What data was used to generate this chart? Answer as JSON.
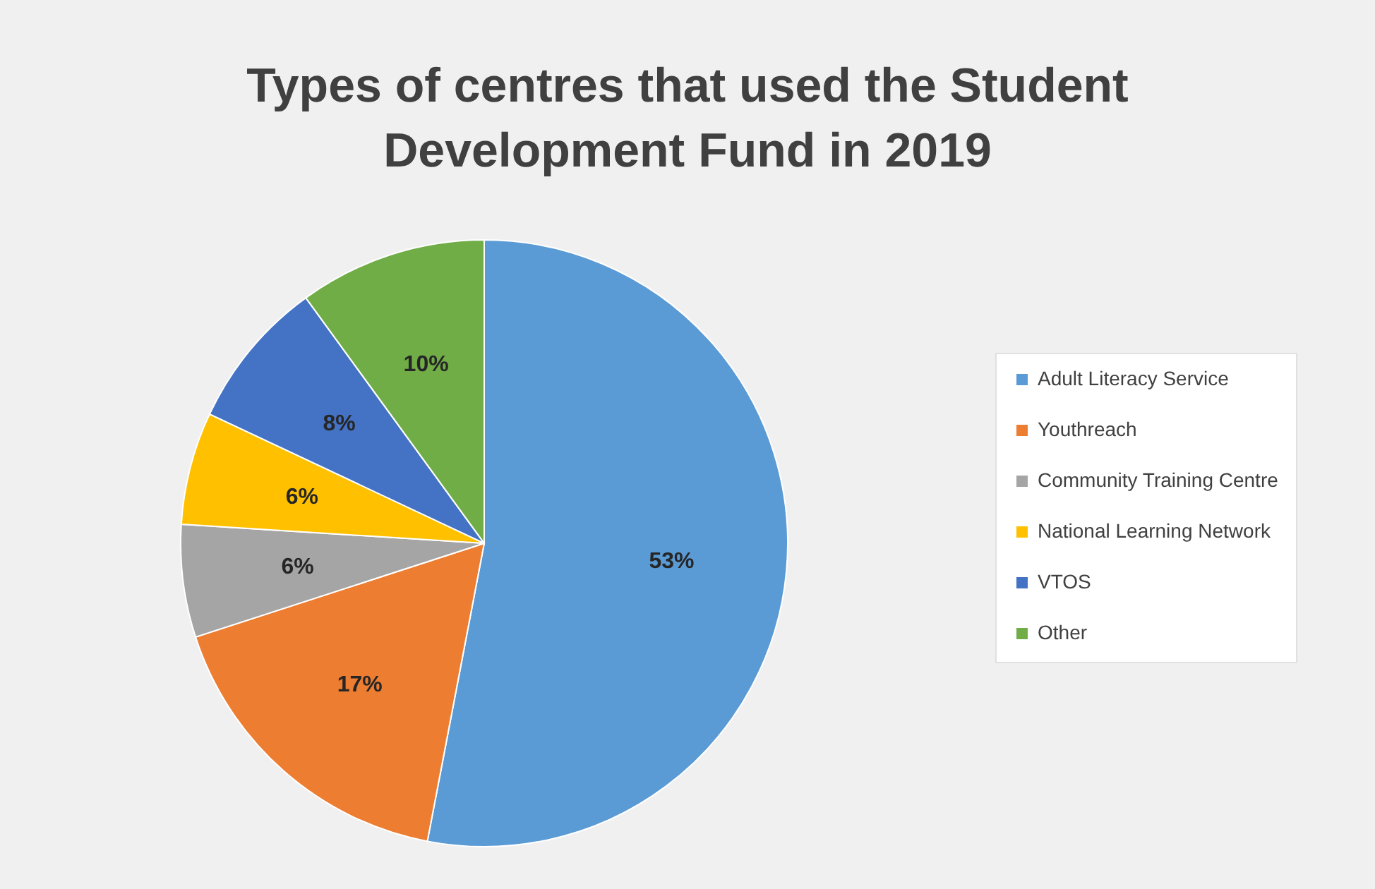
{
  "chart_data": {
    "type": "pie",
    "title": "Types of centres that used the Student Development Fund in 2019",
    "categories": [
      "Adult Literacy Service",
      "Youthreach",
      "Community Training Centre",
      "National Learning Network",
      "VTOS",
      "Other"
    ],
    "values": [
      53,
      17,
      6,
      6,
      8,
      10
    ],
    "colors": [
      "#5b9bd5",
      "#ed7d31",
      "#a5a5a5",
      "#ffc000",
      "#4472c4",
      "#70ad47"
    ],
    "value_labels": [
      "53%",
      "17%",
      "6%",
      "6%",
      "8%",
      "10%"
    ],
    "legend": "right"
  }
}
